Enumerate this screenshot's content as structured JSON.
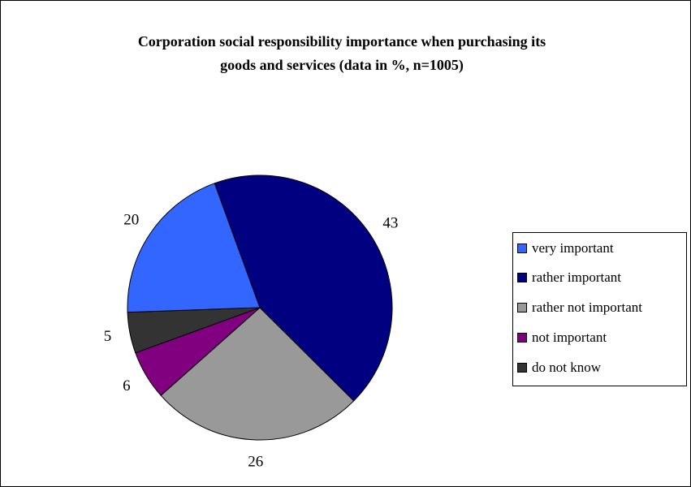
{
  "chart_data": {
    "type": "pie",
    "title": "Corporation social responsibility importance when purchasing its\ngoods and services  (data in %, n=1005)",
    "start_angle_deg": -20,
    "direction": "clockwise",
    "slices": [
      {
        "label": "rather important",
        "value": 43,
        "color": "#000080"
      },
      {
        "label": "rather not important",
        "value": 26,
        "color": "#999999"
      },
      {
        "label": "not important",
        "value": 6,
        "color": "#800080"
      },
      {
        "label": "do not know",
        "value": 5,
        "color": "#333333"
      },
      {
        "label": "very important",
        "value": 20,
        "color": "#3366ff"
      }
    ],
    "legend": {
      "position": "right",
      "entries": [
        {
          "label": "very important",
          "color": "#3366ff"
        },
        {
          "label": "rather important",
          "color": "#000080"
        },
        {
          "label": "rather not important",
          "color": "#999999"
        },
        {
          "label": "not important",
          "color": "#800080"
        },
        {
          "label": "do not know",
          "color": "#333333"
        }
      ]
    }
  }
}
